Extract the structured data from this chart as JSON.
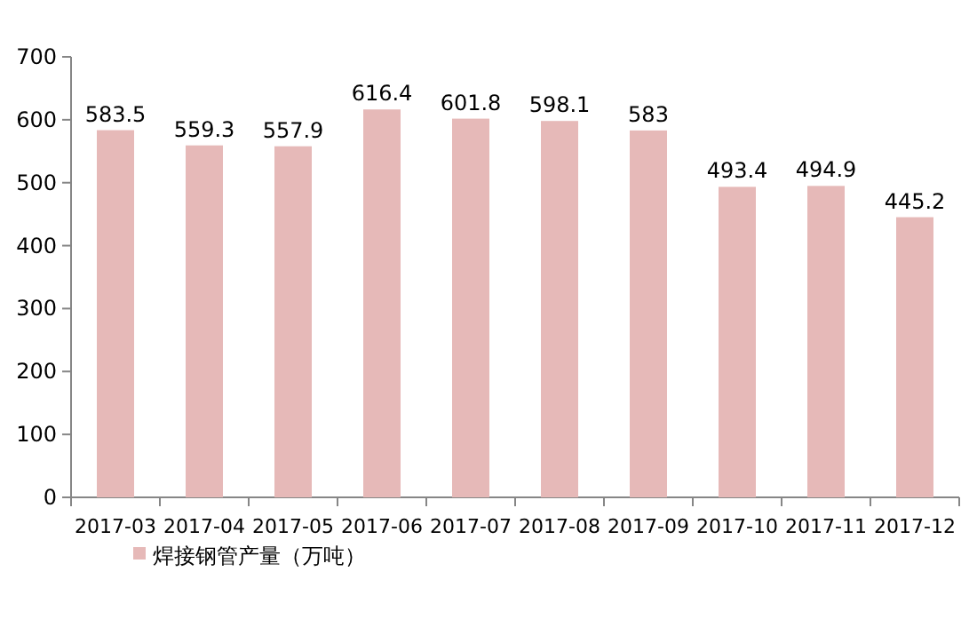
{
  "chart_data": {
    "type": "bar",
    "categories": [
      "2017-03",
      "2017-04",
      "2017-05",
      "2017-06",
      "2017-07",
      "2017-08",
      "2017-09",
      "2017-10",
      "2017-11",
      "2017-12"
    ],
    "series": [
      {
        "name": "焊接钢管产量（万吨）",
        "color": "#e6b9b8",
        "values": [
          583.5,
          559.3,
          557.9,
          616.4,
          601.8,
          598.1,
          583,
          493.4,
          494.9,
          445.2
        ]
      }
    ],
    "ylim": [
      0,
      700
    ],
    "yticks": [
      0,
      100,
      200,
      300,
      400,
      500,
      600,
      700
    ],
    "data_labels": true,
    "legend": "bottom"
  }
}
